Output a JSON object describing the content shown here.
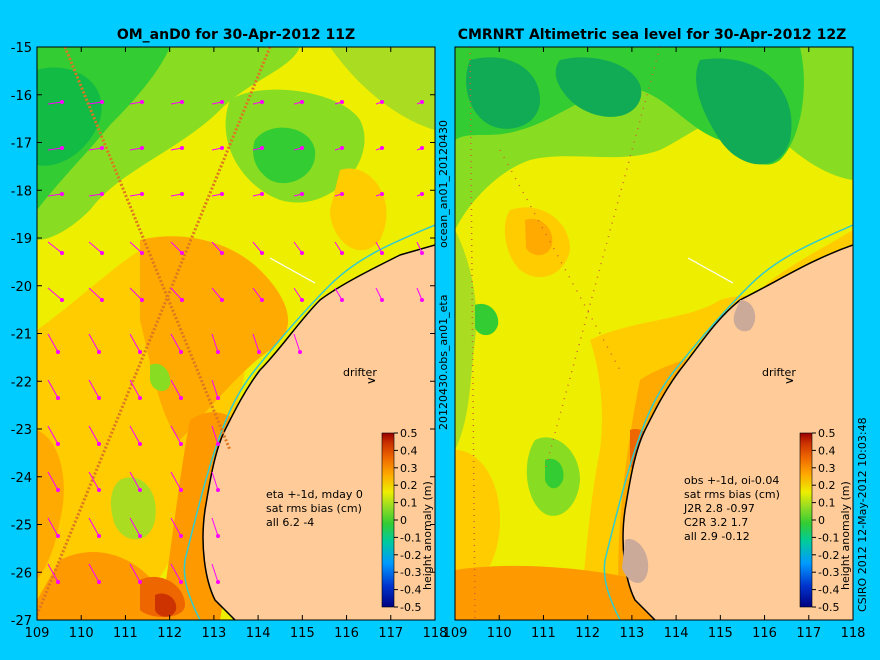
{
  "colors": {
    "page_bg": "#00ccff",
    "land": "#ffcc99",
    "coastline": "#000000",
    "current_line": "#33cccc",
    "vector": "#ff00ff",
    "drifter_marker": "#ff00ff"
  },
  "chart_data": [
    {
      "type": "heatmap",
      "title": "OM_anD0 for 30-Apr-2012 11Z",
      "xlim": [
        109,
        118
      ],
      "ylim": [
        -27,
        -15
      ],
      "x_ticks": [
        "109",
        "110",
        "111",
        "112",
        "113",
        "114",
        "115",
        "116",
        "117",
        "118"
      ],
      "y_ticks": [
        "-15",
        "-16",
        "-17",
        "-18",
        "-19",
        "-20",
        "-21",
        "-22",
        "-23",
        "-24",
        "-25",
        "-26",
        "-27"
      ],
      "annotations": {
        "drifter": "drifter",
        "stats": [
          "eta +-1d, mday 0",
          "sat rms bias (cm)",
          "all 6.2 -4"
        ]
      },
      "side_label": "20120430.obs_an01_eta",
      "colorbar": {
        "label": "height anomaly (m)",
        "range": [
          -0.5,
          0.5
        ],
        "ticks": [
          "0.5",
          "0.4",
          "0.3",
          "0.2",
          "0.1",
          "0",
          "-0.1",
          "-0.2",
          "-0.3",
          "-0.4",
          "-0.5"
        ]
      }
    },
    {
      "type": "heatmap",
      "title": "CMRNRT Altimetric sea level  for 30-Apr-2012 12Z",
      "xlim": [
        109,
        118
      ],
      "ylim": [
        -27,
        -15
      ],
      "x_ticks": [
        "109",
        "110",
        "111",
        "112",
        "113",
        "114",
        "115",
        "116",
        "117",
        "118"
      ],
      "annotations": {
        "drifter": "drifter",
        "stats": [
          "obs +-1d, oi-0.04",
          "sat rms bias (cm)",
          "J2R   2.8 -0.97",
          "C2R   3.2 1.7",
          "all 2.9 -0.12"
        ]
      },
      "side_label_top": "ocean_an01_20120430",
      "colorbar": {
        "label": "height anomaly (m)",
        "range": [
          -0.5,
          0.5
        ],
        "ticks": [
          "0.5",
          "0.4",
          "0.3",
          "0.2",
          "0.1",
          "0",
          "-0.1",
          "-0.2",
          "-0.3",
          "-0.4",
          "-0.5"
        ]
      },
      "credit": "CSIRO 2012  12-May-2012 10:03:48"
    }
  ]
}
